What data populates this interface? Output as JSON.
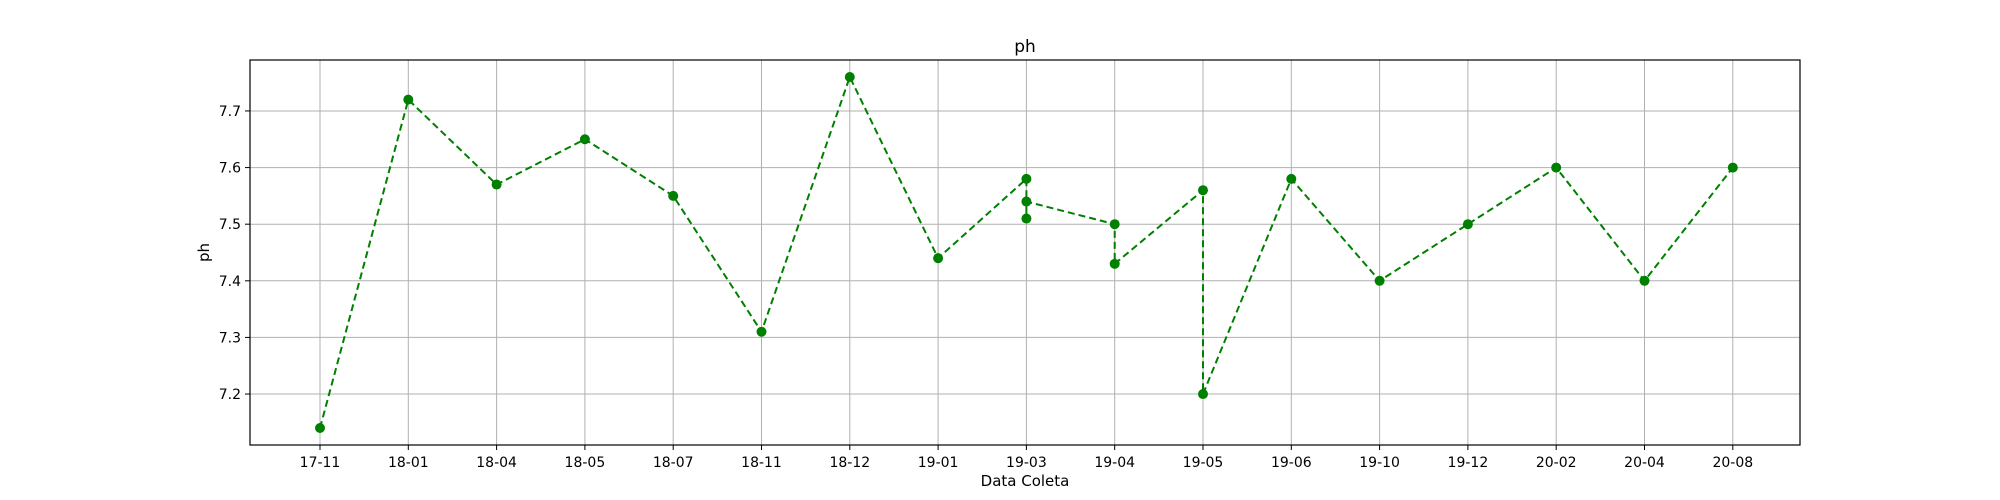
{
  "chart_data": {
    "type": "line",
    "title": "ph",
    "xlabel": "Data Coleta",
    "ylabel": "ph",
    "categories": [
      "17-11",
      "18-01",
      "18-04",
      "18-05",
      "18-07",
      "18-11",
      "18-12",
      "19-01",
      "19-03",
      "19-04",
      "19-05",
      "19-06",
      "19-10",
      "19-12",
      "20-02",
      "20-04",
      "20-08"
    ],
    "points": [
      {
        "x": "17-11",
        "y": 7.14
      },
      {
        "x": "18-01",
        "y": 7.72
      },
      {
        "x": "18-04",
        "y": 7.57
      },
      {
        "x": "18-05",
        "y": 7.65
      },
      {
        "x": "18-07",
        "y": 7.55
      },
      {
        "x": "18-11",
        "y": 7.31
      },
      {
        "x": "18-12",
        "y": 7.76
      },
      {
        "x": "19-01",
        "y": 7.44
      },
      {
        "x": "19-03",
        "y": 7.58
      },
      {
        "x": "19-03",
        "y": 7.51
      },
      {
        "x": "19-03",
        "y": 7.54
      },
      {
        "x": "19-04",
        "y": 7.5
      },
      {
        "x": "19-04",
        "y": 7.43
      },
      {
        "x": "19-05",
        "y": 7.56
      },
      {
        "x": "19-05",
        "y": 7.2
      },
      {
        "x": "19-06",
        "y": 7.58
      },
      {
        "x": "19-10",
        "y": 7.4
      },
      {
        "x": "19-12",
        "y": 7.5
      },
      {
        "x": "20-02",
        "y": 7.6
      },
      {
        "x": "20-04",
        "y": 7.4
      },
      {
        "x": "20-08",
        "y": 7.6
      }
    ],
    "yticks": [
      "7.2",
      "7.3",
      "7.4",
      "7.5",
      "7.6",
      "7.7"
    ],
    "ylim": [
      7.11,
      7.79
    ],
    "grid": true,
    "line_style": "dashed",
    "marker": "circle",
    "color": "#008000"
  }
}
